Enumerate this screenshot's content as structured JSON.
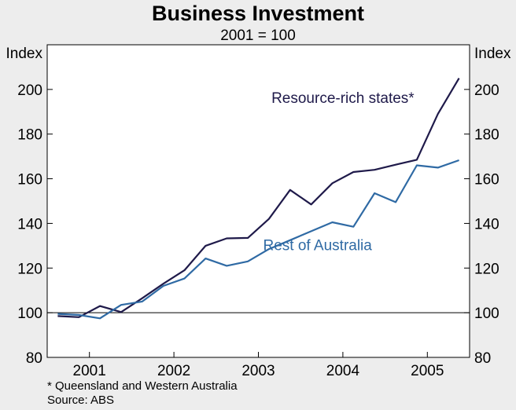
{
  "title": "Business Investment",
  "subtitle": "2001 = 100",
  "footnote": "*   Queensland and Western Australia",
  "source": "Source: ABS",
  "colors": {
    "resource": "#1f1a4a",
    "rest": "#2f6aa4",
    "plot_bg": "#ffffff",
    "page_bg": "#ededed"
  },
  "chart_data": {
    "type": "line",
    "ylabel_left": "Index",
    "ylabel_right": "Index",
    "ylim": [
      80,
      220
    ],
    "yticks": [
      80,
      100,
      120,
      140,
      160,
      180,
      200
    ],
    "xlim": [
      2000.5,
      2005.5
    ],
    "xtick_labels": [
      "2001",
      "2002",
      "2003",
      "2004",
      "2005"
    ],
    "reference_line": 100,
    "grid": false,
    "series": [
      {
        "name": "Resource-rich states*",
        "color": "#1f1a4a",
        "x": [
          2000.625,
          2000.875,
          2001.125,
          2001.375,
          2001.625,
          2001.875,
          2002.125,
          2002.375,
          2002.625,
          2002.875,
          2003.125,
          2003.375,
          2003.625,
          2003.875,
          2004.125,
          2004.375,
          2004.625,
          2004.875,
          2005.125,
          2005.375
        ],
        "y": [
          98.5,
          98,
          103,
          100.3,
          106.5,
          113,
          119,
          130,
          133.3,
          133.5,
          142,
          155,
          148.5,
          158,
          163,
          164,
          166.3,
          168.5,
          189,
          205
        ]
      },
      {
        "name": "Rest of Australia",
        "color": "#2f6aa4",
        "x": [
          2000.625,
          2000.875,
          2001.125,
          2001.375,
          2001.625,
          2001.875,
          2002.125,
          2002.375,
          2002.625,
          2002.875,
          2003.125,
          2003.375,
          2003.625,
          2003.875,
          2004.125,
          2004.375,
          2004.625,
          2004.875,
          2005.125,
          2005.375
        ],
        "y": [
          99.5,
          99,
          97.5,
          103.5,
          105,
          112,
          115.3,
          124.3,
          121,
          123,
          128.5,
          132.5,
          136.5,
          140.5,
          138.5,
          153.5,
          149.5,
          166,
          165,
          168.3
        ]
      }
    ],
    "annotations": [
      {
        "text": "Resource-rich states*",
        "series": 0,
        "x": 2004.0,
        "y": 194
      },
      {
        "text": "Rest of Australia",
        "series": 1,
        "x": 2003.7,
        "y": 128
      }
    ]
  }
}
